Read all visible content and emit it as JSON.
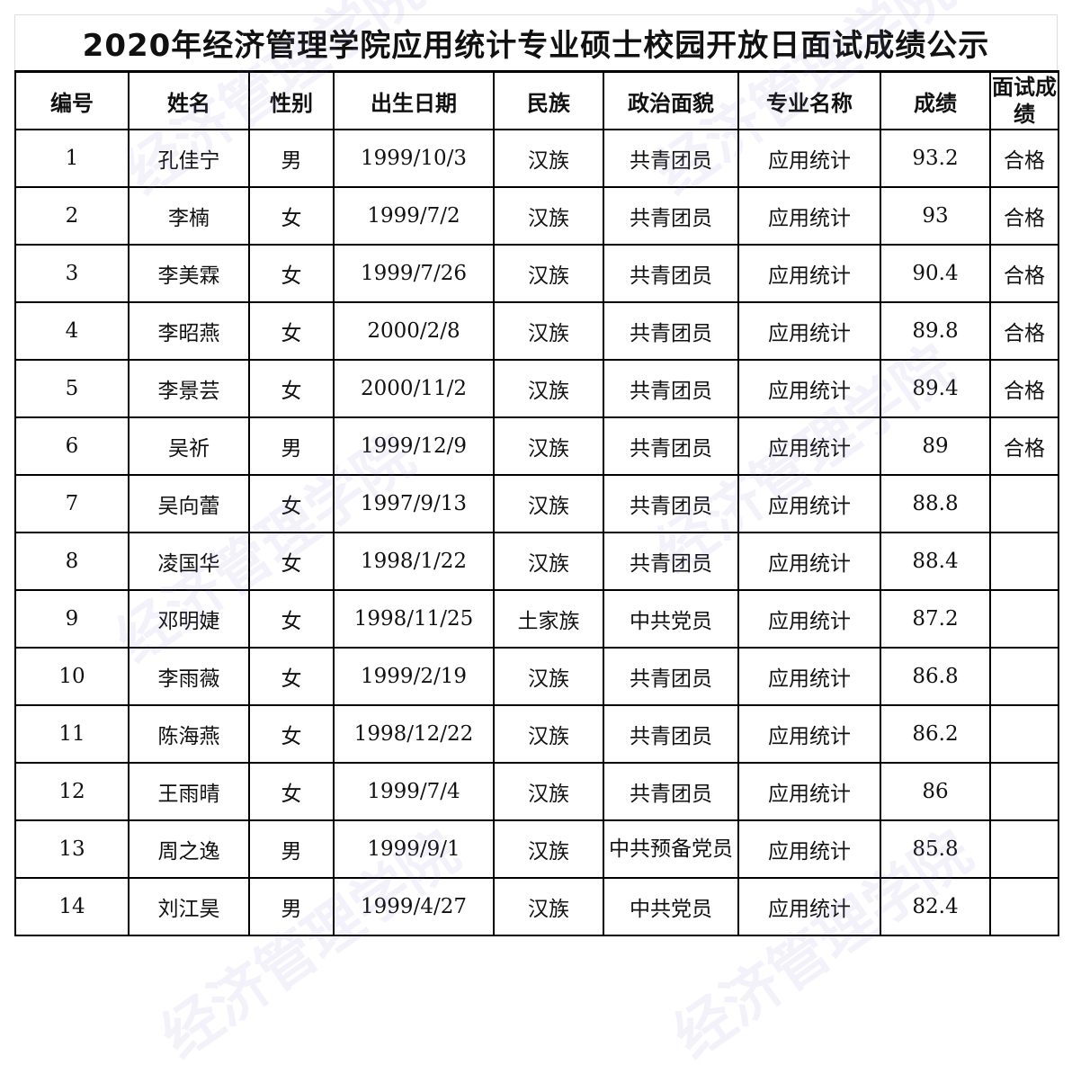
{
  "title": "2020年经济管理学院应用统计专业硕士校园开放日面试成绩公示",
  "watermark": "经济管理学院",
  "headers": [
    "编号",
    "姓名",
    "性别",
    "出生日期",
    "民族",
    "政治面貌",
    "专业名称",
    "成绩",
    "面试成绩"
  ],
  "rows": [
    [
      "1",
      "孔佳宁",
      "男",
      "1999/10/3",
      "汉族",
      "共青团员",
      "应用统计",
      "93.2",
      "合格"
    ],
    [
      "2",
      "李楠",
      "女",
      "1999/7/2",
      "汉族",
      "共青团员",
      "应用统计",
      "93",
      "合格"
    ],
    [
      "3",
      "李美霖",
      "女",
      "1999/7/26",
      "汉族",
      "共青团员",
      "应用统计",
      "90.4",
      "合格"
    ],
    [
      "4",
      "李昭燕",
      "女",
      "2000/2/8",
      "汉族",
      "共青团员",
      "应用统计",
      "89.8",
      "合格"
    ],
    [
      "5",
      "李景芸",
      "女",
      "2000/11/2",
      "汉族",
      "共青团员",
      "应用统计",
      "89.4",
      "合格"
    ],
    [
      "6",
      "吴祈",
      "男",
      "1999/12/9",
      "汉族",
      "共青团员",
      "应用统计",
      "89",
      "合格"
    ],
    [
      "7",
      "吴向蕾",
      "女",
      "1997/9/13",
      "汉族",
      "共青团员",
      "应用统计",
      "88.8",
      ""
    ],
    [
      "8",
      "凌国华",
      "女",
      "1998/1/22",
      "汉族",
      "共青团员",
      "应用统计",
      "88.4",
      ""
    ],
    [
      "9",
      "邓明婕",
      "女",
      "1998/11/25",
      "土家族",
      "中共党员",
      "应用统计",
      "87.2",
      ""
    ],
    [
      "10",
      "李雨薇",
      "女",
      "1999/2/19",
      "汉族",
      "共青团员",
      "应用统计",
      "86.8",
      ""
    ],
    [
      "11",
      "陈海燕",
      "女",
      "1998/12/22",
      "汉族",
      "共青团员",
      "应用统计",
      "86.2",
      ""
    ],
    [
      "12",
      "王雨晴",
      "女",
      "1999/7/4",
      "汉族",
      "共青团员",
      "应用统计",
      "86",
      ""
    ],
    [
      "13",
      "周之逸",
      "男",
      "1999/9/1",
      "汉族",
      "中共预备党员",
      "应用统计",
      "85.8",
      ""
    ],
    [
      "14",
      "刘江昊",
      "男",
      "1999/4/27",
      "汉族",
      "中共党员",
      "应用统计",
      "82.4",
      ""
    ]
  ]
}
